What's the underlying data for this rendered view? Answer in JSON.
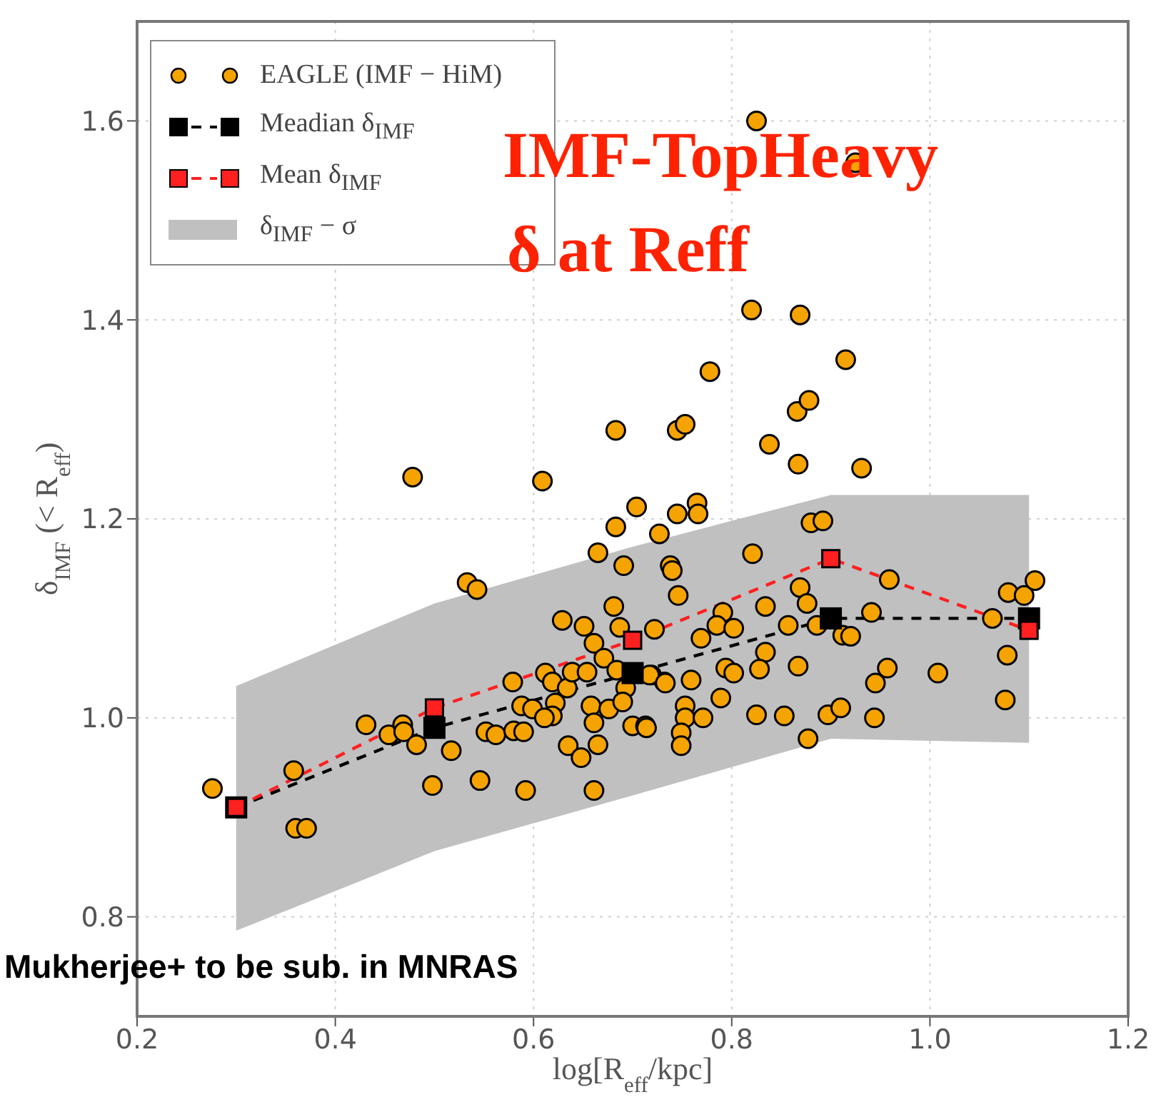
{
  "chart_data": {
    "type": "scatter",
    "xlabel": "log[R$_{eff}$/kpc]",
    "ylabel": "δ$_{IMF}$ (< R$_{eff}$)",
    "xlim": [
      0.2,
      1.2
    ],
    "xticks": [
      0.2,
      0.4,
      0.6,
      0.8,
      {
        "value": 1.0,
        "label": "1.0"
      },
      1.2
    ],
    "ylim": [
      0.7,
      1.7
    ],
    "yticks": [
      0.8,
      {
        "value": 1.0,
        "label": "1.0"
      },
      1.2,
      1.4,
      1.6
    ],
    "grid": true,
    "legend": "top left",
    "annotations": [
      "IMF-TopHeavy",
      "δ at Reff",
      "Mukherjee+ to be sub. in MNRAS"
    ],
    "series": [
      {
        "type": "area",
        "name": "δ$_{IMF}$ − σ",
        "color": "#c0c0c0",
        "x": [
          0.3,
          0.5,
          0.7,
          0.9,
          1.1
        ],
        "lower": [
          0.786,
          0.866,
          0.922,
          0.979,
          0.975
        ],
        "upper": [
          1.032,
          1.115,
          1.172,
          1.224,
          1.224
        ],
        "values": [
          null,
          null,
          null,
          null,
          null
        ]
      },
      {
        "name": "EAGLE (IMF − HiM)",
        "color": "#f5a300",
        "marker": "circle",
        "x": [
          0.825,
          0.925,
          0.82,
          0.869,
          0.915,
          0.778,
          0.866,
          0.878,
          0.838,
          0.867,
          0.931,
          0.745,
          0.753,
          0.683,
          0.478,
          0.609,
          0.704,
          0.765,
          0.766,
          0.683,
          0.745,
          0.727,
          0.665,
          0.691,
          0.738,
          0.821,
          0.88,
          0.892,
          0.533,
          0.543,
          0.681,
          0.629,
          0.651,
          0.687,
          0.722,
          0.661,
          0.671,
          0.579,
          0.612,
          0.619,
          0.634,
          0.639,
          0.654,
          0.684,
          0.693,
          0.719,
          0.732,
          0.588,
          0.599,
          0.622,
          0.619,
          0.611,
          0.658,
          0.676,
          0.69,
          0.661,
          0.7,
          0.713,
          0.552,
          0.562,
          0.58,
          0.59,
          0.635,
          0.648,
          0.665,
          0.431,
          0.454,
          0.468,
          0.469,
          0.482,
          0.517,
          0.498,
          0.546,
          0.592,
          0.661,
          0.276,
          0.358,
          0.36,
          0.371,
          0.74,
          0.746,
          0.959,
          0.869,
          0.876,
          1.079,
          1.095,
          1.106,
          0.834,
          0.791,
          0.785,
          0.802,
          0.769,
          0.857,
          0.886,
          0.941,
          0.912,
          0.92,
          1.063,
          0.834,
          0.717,
          0.733,
          0.759,
          0.794,
          0.802,
          0.828,
          0.867,
          0.957,
          0.945,
          1.008,
          1.078,
          1.076,
          0.789,
          0.753,
          0.753,
          0.771,
          0.825,
          0.853,
          0.897,
          0.91,
          0.944,
          0.877,
          0.749,
          0.749,
          0.714
        ],
        "values": [
          1.6,
          1.558,
          1.41,
          1.405,
          1.36,
          1.348,
          1.308,
          1.319,
          1.275,
          1.255,
          1.251,
          1.289,
          1.295,
          1.289,
          1.242,
          1.238,
          1.212,
          1.216,
          1.205,
          1.192,
          1.205,
          1.185,
          1.166,
          1.153,
          1.153,
          1.165,
          1.196,
          1.198,
          1.136,
          1.129,
          1.112,
          1.098,
          1.092,
          1.091,
          1.089,
          1.075,
          1.06,
          1.036,
          1.045,
          1.036,
          1.03,
          1.046,
          1.046,
          1.048,
          1.03,
          1.043,
          1.036,
          1.012,
          1.009,
          1.015,
          1.002,
          1.0,
          1.012,
          1.009,
          1.016,
          0.995,
          0.992,
          0.992,
          0.986,
          0.983,
          0.987,
          0.986,
          0.972,
          0.96,
          0.973,
          0.993,
          0.983,
          0.993,
          0.986,
          0.973,
          0.967,
          0.932,
          0.937,
          0.927,
          0.927,
          0.929,
          0.947,
          0.889,
          0.889,
          1.148,
          1.123,
          1.139,
          1.131,
          1.115,
          1.126,
          1.123,
          1.138,
          1.112,
          1.106,
          1.093,
          1.09,
          1.08,
          1.093,
          1.093,
          1.106,
          1.083,
          1.082,
          1.1,
          1.066,
          1.043,
          1.035,
          1.038,
          1.05,
          1.045,
          1.049,
          1.052,
          1.05,
          1.035,
          1.045,
          1.063,
          1.018,
          1.02,
          1.012,
          1.0,
          1.0,
          1.003,
          1.002,
          1.003,
          1.01,
          1.0,
          0.979,
          0.985,
          0.972,
          0.99
        ]
      },
      {
        "type": "line",
        "name": "Meadian δ$_{IMF}$",
        "color": "#000000",
        "marker": "square",
        "line_style": "dashed",
        "x": [
          0.3,
          0.5,
          0.7,
          0.9,
          1.1
        ],
        "values": [
          0.91,
          0.99,
          1.045,
          1.1,
          1.1
        ]
      },
      {
        "type": "line",
        "name": "Mean δ$_{IMF}$",
        "color": "#ff2020",
        "marker": "square",
        "line_style": "dashed",
        "x": [
          0.3,
          0.5,
          0.7,
          0.9,
          1.1
        ],
        "values": [
          0.91,
          1.01,
          1.078,
          1.16,
          1.088
        ]
      }
    ]
  }
}
